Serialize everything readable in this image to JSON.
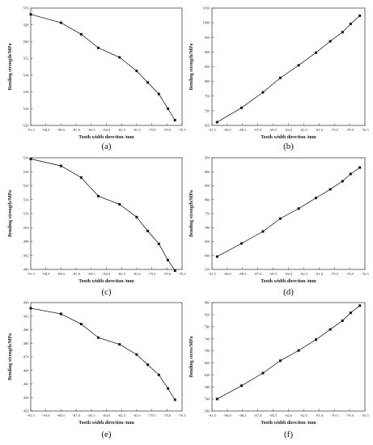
{
  "chart_data": [
    {
      "type": "line",
      "panel_label": "(a)",
      "xlabel": "Tooth width direction /mm",
      "ylabel": "Bending strength/MPa",
      "xlim": [
        -91.5,
        -76.5
      ],
      "ylim": [
        520,
        576
      ],
      "xticks": [
        -91.5,
        -90.0,
        -88.5,
        -87.0,
        -85.5,
        -84.0,
        -82.5,
        -81.0,
        -79.5,
        -78.0,
        -76.5
      ],
      "yticks": [
        520,
        528,
        536,
        544,
        552,
        560,
        568,
        576
      ],
      "x": [
        -91.5,
        -88.5,
        -86.5,
        -84.8,
        -82.7,
        -81.0,
        -79.9,
        -78.8,
        -77.9,
        -77.2
      ],
      "y": [
        573,
        569,
        563.5,
        557,
        552.5,
        546,
        540.5,
        535,
        528,
        522.5
      ],
      "grid": false
    },
    {
      "type": "line",
      "panel_label": "(b)",
      "xlabel": "Tooth width direction /mm",
      "ylabel": "Bending strength/MPa",
      "xlim": [
        -91.5,
        -76.5
      ],
      "ylim": [
        650,
        1050
      ],
      "xticks": [
        -91.5,
        -90.0,
        -88.5,
        -87.0,
        -85.5,
        -84.0,
        -82.5,
        -81.0,
        -79.5,
        -78.0,
        -76.5
      ],
      "yticks": [
        650,
        700,
        750,
        800,
        850,
        900,
        950,
        1000,
        1050
      ],
      "x": [
        -91.0,
        -88.6,
        -86.5,
        -84.8,
        -83.0,
        -81.3,
        -79.9,
        -78.7,
        -77.9,
        -77.0
      ],
      "y": [
        661,
        710,
        763,
        812,
        855,
        898,
        937,
        968,
        996,
        1024
      ],
      "grid": false
    },
    {
      "type": "line",
      "panel_label": "(c)",
      "xlabel": "Tooth width direction /mm",
      "ylabel": "Bending strength/MPa",
      "xlim": [
        -91.5,
        -76.5
      ],
      "ylim": [
        486,
        534
      ],
      "xticks": [
        -91.5,
        -90.0,
        -88.5,
        -87.0,
        -85.5,
        -84.0,
        -82.5,
        -81.0,
        -79.5,
        -78.0,
        -76.5
      ],
      "yticks": [
        486,
        492,
        498,
        504,
        510,
        516,
        522,
        528,
        534
      ],
      "x": [
        -91.5,
        -88.5,
        -86.5,
        -84.8,
        -82.7,
        -81.0,
        -79.9,
        -78.8,
        -77.9,
        -77.2
      ],
      "y": [
        533.5,
        530.5,
        525.5,
        517.5,
        514,
        508.5,
        502.5,
        497,
        490,
        485.5
      ],
      "grid": false
    },
    {
      "type": "line",
      "panel_label": "(d)",
      "xlabel": "Tooth width direction /mm",
      "ylabel": "Bending strength/MPa",
      "xlim": [
        -91.5,
        -76.5
      ],
      "ylim": [
        550,
        950
      ],
      "xticks": [
        -91.5,
        -90.0,
        -88.5,
        -87.0,
        -85.5,
        -84.0,
        -82.5,
        -81.0,
        -79.5,
        -78.0,
        -76.5
      ],
      "yticks": [
        550,
        600,
        650,
        700,
        750,
        800,
        850,
        900,
        950
      ],
      "x": [
        -91.0,
        -88.6,
        -86.5,
        -84.8,
        -83.0,
        -81.3,
        -79.9,
        -78.7,
        -77.9,
        -77.0
      ],
      "y": [
        596,
        643,
        686,
        732,
        768,
        806,
        837,
        866,
        892,
        915
      ],
      "grid": false
    },
    {
      "type": "line",
      "panel_label": "(e)",
      "xlabel": "Tooth width direction /mm",
      "ylabel": "Bending strength/MPa",
      "xlim": [
        -91.5,
        -76.5
      ],
      "ylim": [
        450,
        498
      ],
      "xticks": [
        -91.5,
        -90.0,
        -88.5,
        -87.0,
        -85.5,
        -84.0,
        -82.5,
        -81.0,
        -79.5,
        -78.0,
        -76.5
      ],
      "yticks": [
        450,
        456,
        462,
        468,
        474,
        480,
        486,
        492,
        498
      ],
      "x": [
        -91.5,
        -88.5,
        -86.5,
        -84.8,
        -82.7,
        -81.0,
        -79.9,
        -78.8,
        -77.9,
        -77.2
      ],
      "y": [
        495.5,
        493,
        488.5,
        482.5,
        479.5,
        475,
        470.5,
        466,
        460,
        455
      ],
      "grid": false
    },
    {
      "type": "line",
      "panel_label": "(f)",
      "xlabel": "Tooth width direction /mm",
      "ylabel": "Bending stress/MPa",
      "xlim": [
        -91.5,
        -76.5
      ],
      "ylim": [
        500,
        860
      ],
      "xticks": [
        -91.5,
        -90.0,
        -88.5,
        -87.0,
        -85.5,
        -84.0,
        -82.5,
        -81.0,
        -79.5,
        -78.0,
        -76.5
      ],
      "yticks": [
        500,
        540,
        580,
        620,
        660,
        700,
        740,
        780,
        820,
        860
      ],
      "x": [
        -91.0,
        -88.6,
        -86.5,
        -84.8,
        -83.0,
        -81.3,
        -79.9,
        -78.7,
        -77.9,
        -77.0
      ],
      "y": [
        540,
        584,
        626,
        667,
        701,
        737,
        771,
        800,
        826,
        850
      ],
      "grid": false
    }
  ]
}
